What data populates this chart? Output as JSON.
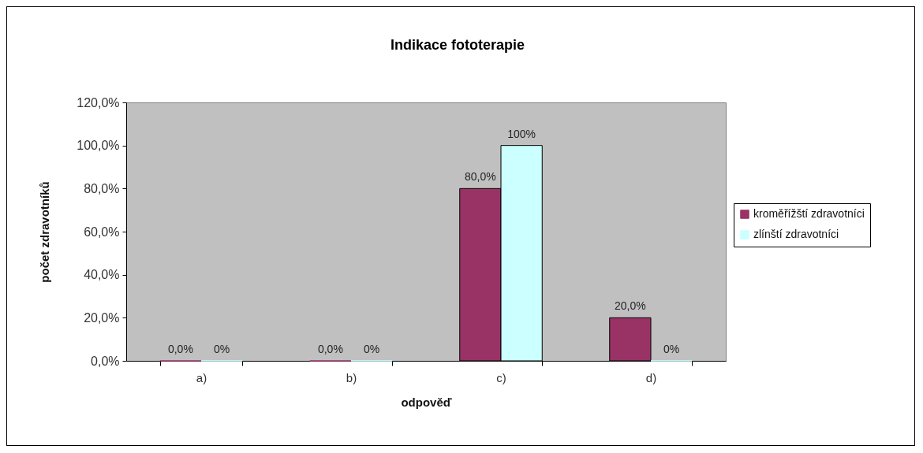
{
  "chart_data": {
    "type": "bar",
    "title": "Indikace fototerapie",
    "xlabel": "odpověď",
    "ylabel": "počet zdravotníků",
    "categories": [
      "a)",
      "b)",
      "c)",
      "d)"
    ],
    "series": [
      {
        "name": "kroměřížští zdravotníci",
        "color": "#993366",
        "values": [
          0,
          0,
          80,
          20
        ],
        "value_labels": [
          "0,0%",
          "0,0%",
          "80,0%",
          "20,0%"
        ]
      },
      {
        "name": "zlínští zdravotníci",
        "color": "#ccffff",
        "values": [
          0,
          0,
          100,
          0
        ],
        "value_labels": [
          "0%",
          "0%",
          "100%",
          "0%"
        ]
      }
    ],
    "ylim": [
      0,
      120
    ],
    "yticks": [
      {
        "value": 0,
        "label": "0,0%"
      },
      {
        "value": 20,
        "label": "20,0%"
      },
      {
        "value": 40,
        "label": "40,0%"
      },
      {
        "value": 60,
        "label": "60,0%"
      },
      {
        "value": 80,
        "label": "80,0%"
      },
      {
        "value": 100,
        "label": "100,0%"
      },
      {
        "value": 120,
        "label": "120,0%"
      }
    ],
    "legend": "right"
  }
}
